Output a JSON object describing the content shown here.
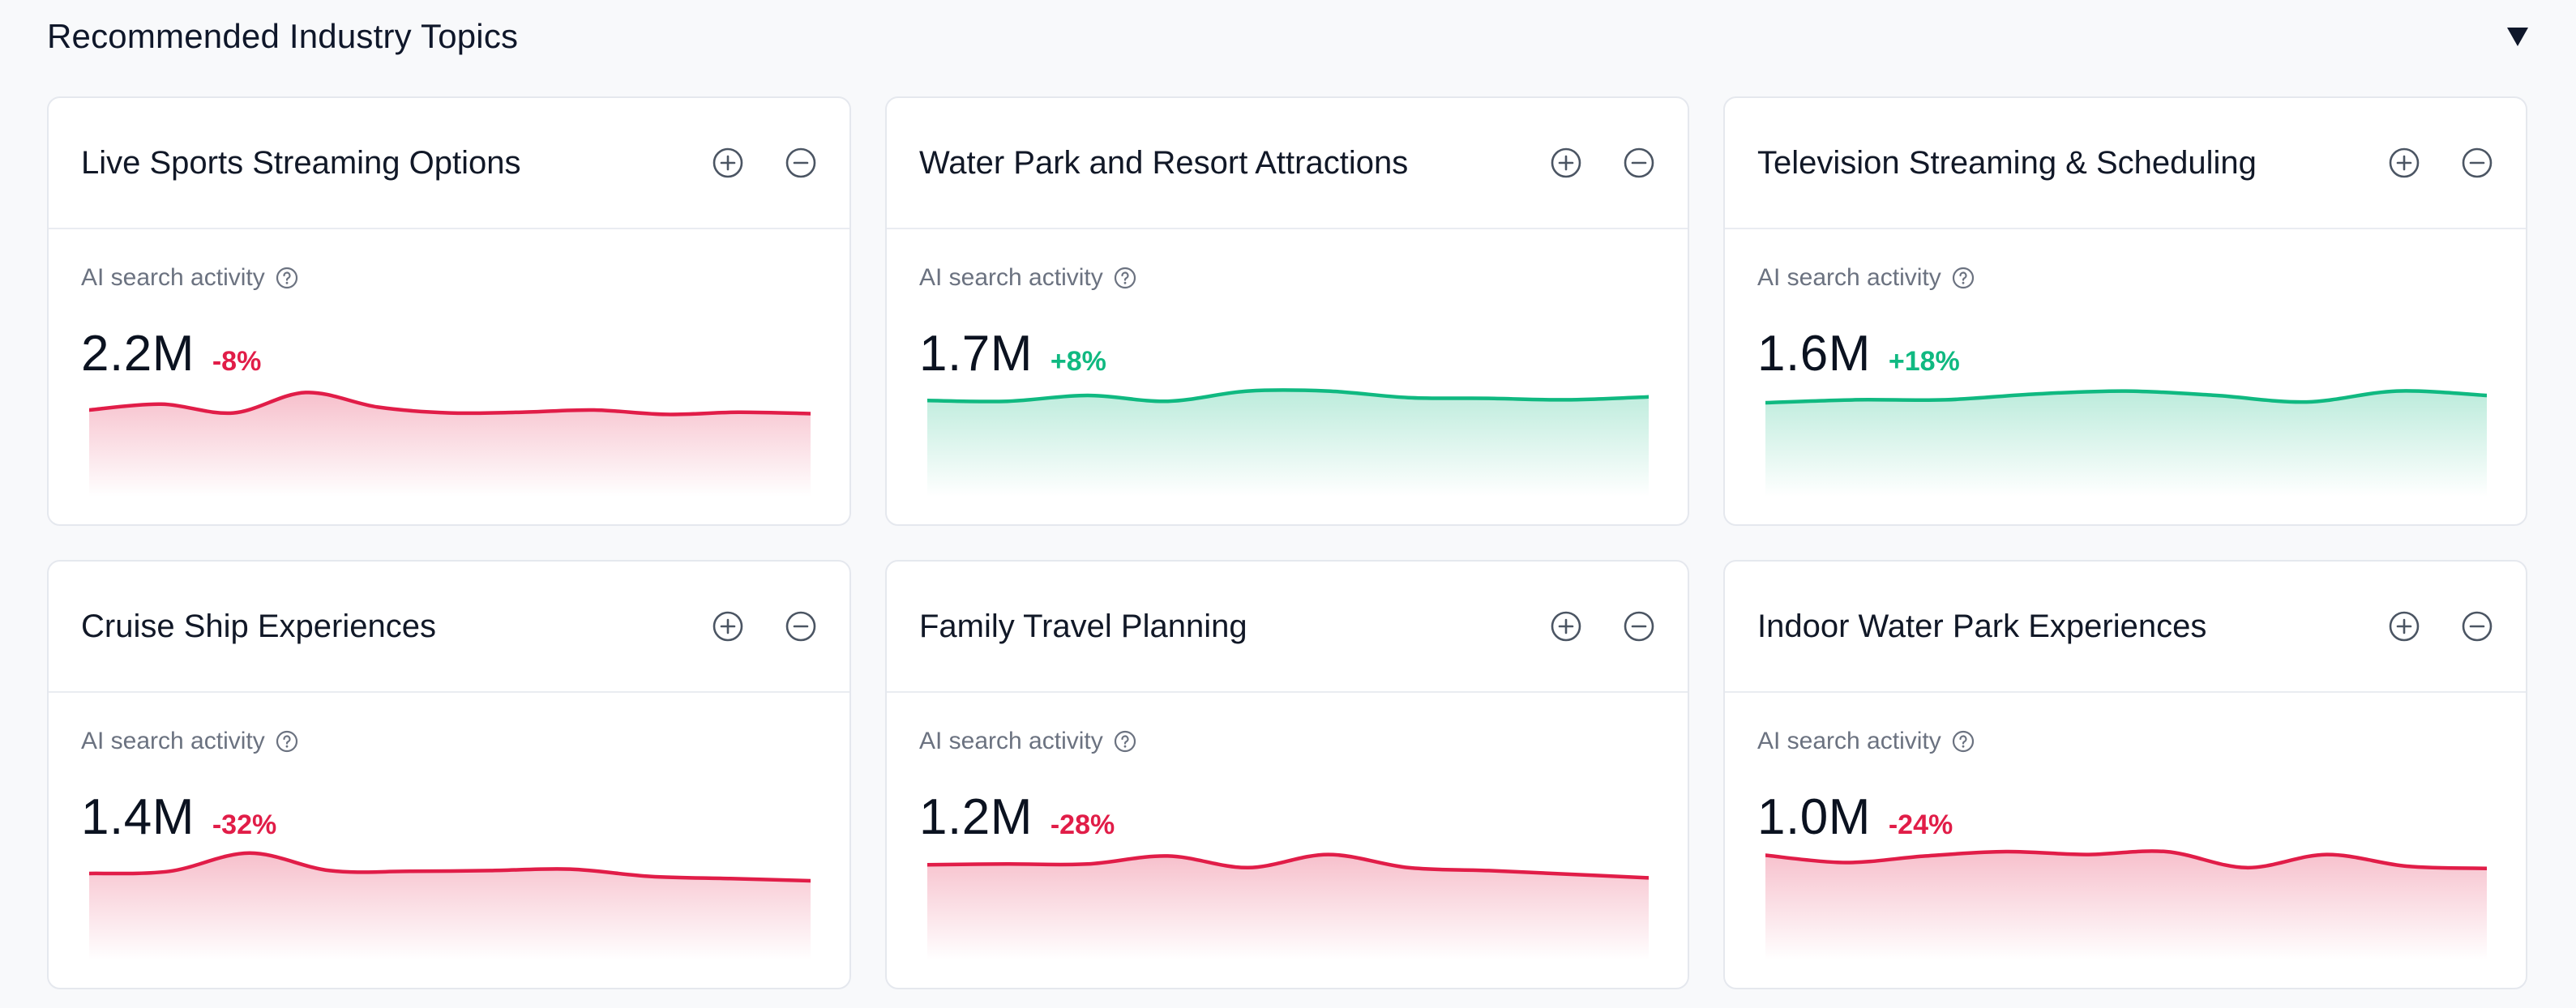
{
  "header": {
    "title": "Recommended Industry Topics",
    "collapse_icon": "triangle-down-icon"
  },
  "colors": {
    "negative": "#e11d48",
    "positive": "#10b981"
  },
  "cards": [
    {
      "title": "Live Sports Streaming Options",
      "metric_label": "AI search activity",
      "value": "2.2M",
      "change": "-8%",
      "trend": "negative",
      "series": [
        0.3,
        0.22,
        0.34,
        0.06,
        0.26,
        0.34,
        0.33,
        0.3,
        0.36,
        0.33,
        0.35
      ]
    },
    {
      "title": "Water Park and Resort Attractions",
      "metric_label": "AI search activity",
      "value": "1.7M",
      "change": "+8%",
      "trend": "positive",
      "series": [
        0.17,
        0.18,
        0.1,
        0.18,
        0.04,
        0.04,
        0.13,
        0.14,
        0.16,
        0.12
      ]
    },
    {
      "title": "Television Streaming & Scheduling",
      "metric_label": "AI search activity",
      "value": "1.6M",
      "change": "+18%",
      "trend": "positive",
      "series": [
        0.2,
        0.16,
        0.16,
        0.08,
        0.04,
        0.1,
        0.19,
        0.04,
        0.1
      ]
    },
    {
      "title": "Cruise Ship Experiences",
      "metric_label": "AI search activity",
      "value": "1.4M",
      "change": "-32%",
      "trend": "negative",
      "series": [
        0.3,
        0.27,
        0.02,
        0.26,
        0.27,
        0.26,
        0.24,
        0.34,
        0.37,
        0.4
      ]
    },
    {
      "title": "Family Travel Planning",
      "metric_label": "AI search activity",
      "value": "1.2M",
      "change": "-28%",
      "trend": "negative",
      "series": [
        0.18,
        0.17,
        0.17,
        0.06,
        0.22,
        0.04,
        0.22,
        0.26,
        0.31,
        0.36
      ]
    },
    {
      "title": "Indoor Water Park Experiences",
      "metric_label": "AI search activity",
      "value": "1.0M",
      "change": "-24%",
      "trend": "negative",
      "series": [
        0.05,
        0.15,
        0.06,
        0.0,
        0.04,
        0.0,
        0.22,
        0.04,
        0.2,
        0.23
      ]
    }
  ]
}
